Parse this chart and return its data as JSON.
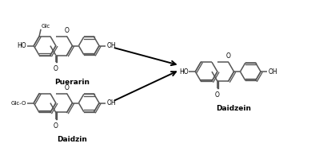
{
  "bg_color": "#ffffff",
  "line_color": "#555555",
  "text_color": "#000000",
  "arrow_color": "#000000",
  "label_puerarin": "Puerarin",
  "label_daidzin": "Daidzin",
  "label_daidzein": "Daidzein",
  "figsize": [
    3.89,
    1.95
  ],
  "dpi": 100
}
